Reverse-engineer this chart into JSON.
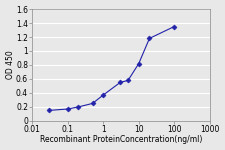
{
  "x": [
    0.03,
    0.1,
    0.2,
    0.5,
    1,
    3,
    5,
    10,
    20,
    100
  ],
  "y": [
    0.15,
    0.17,
    0.2,
    0.25,
    0.37,
    0.55,
    0.58,
    0.82,
    1.18,
    1.35
  ],
  "line_color": "#2222aa",
  "marker": "D",
  "marker_size": 2.5,
  "marker_facecolor": "#2222aa",
  "xlabel": "Recombinant ProteinConcentration(ng/ml)",
  "ylabel": "OD 450",
  "xlim_log": [
    0.01,
    1000
  ],
  "ylim": [
    0,
    1.6
  ],
  "yticks": [
    0,
    0.2,
    0.4,
    0.6,
    0.8,
    1.0,
    1.2,
    1.4,
    1.6
  ],
  "ytick_labels": [
    "0",
    "0.2",
    "0.4",
    "0.6",
    "0.8",
    "1",
    "1.2",
    "1.4",
    "1.6"
  ],
  "xticks": [
    0.01,
    0.1,
    1,
    10,
    100,
    1000
  ],
  "xtick_labels": [
    "0.01",
    "0.1",
    "1",
    "10",
    "100",
    "1000"
  ],
  "background_color": "#e8e8e8",
  "plot_bg_color": "#e8e8e8",
  "grid_color": "#ffffff",
  "label_fontsize": 5.5,
  "tick_fontsize": 5.5
}
